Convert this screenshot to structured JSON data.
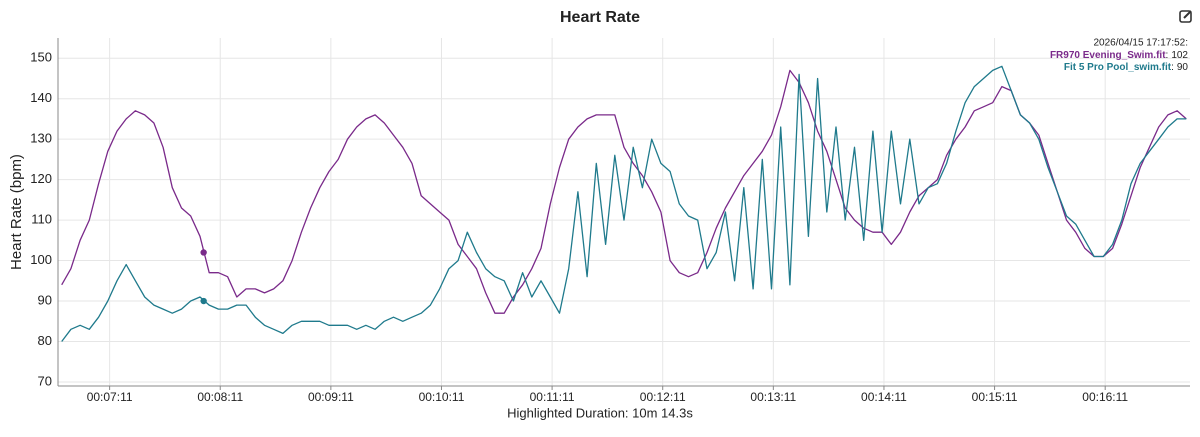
{
  "chart_data": {
    "type": "line",
    "title": "Heart Rate",
    "y_label": "Heart Rate (bpm)",
    "x_label": "Highlighted Duration: 10m 14.3s",
    "readout": {
      "time": "2026/04/15 17:17:52:",
      "separator": ":"
    },
    "xlim": [
      403,
      1017
    ],
    "ylim": [
      69,
      155
    ],
    "grid": true,
    "xticks": [
      {
        "value": 431,
        "label": "00:07:11"
      },
      {
        "value": 491,
        "label": "00:08:11"
      },
      {
        "value": 551,
        "label": "00:09:11"
      },
      {
        "value": 611,
        "label": "00:10:11"
      },
      {
        "value": 671,
        "label": "00:11:11"
      },
      {
        "value": 731,
        "label": "00:12:11"
      },
      {
        "value": 791,
        "label": "00:13:11"
      },
      {
        "value": 851,
        "label": "00:14:11"
      },
      {
        "value": 911,
        "label": "00:15:11"
      },
      {
        "value": 971,
        "label": "00:16:11"
      }
    ],
    "yticks": [
      70,
      80,
      90,
      100,
      110,
      120,
      130,
      140,
      150
    ],
    "x": [
      405,
      410,
      415,
      420,
      425,
      430,
      435,
      440,
      445,
      450,
      455,
      460,
      465,
      470,
      475,
      480,
      485,
      490,
      495,
      500,
      505,
      510,
      515,
      520,
      525,
      530,
      535,
      540,
      545,
      550,
      555,
      560,
      565,
      570,
      575,
      580,
      585,
      590,
      595,
      600,
      605,
      610,
      615,
      620,
      625,
      630,
      635,
      640,
      645,
      650,
      655,
      660,
      665,
      670,
      675,
      680,
      685,
      690,
      695,
      700,
      705,
      710,
      715,
      720,
      725,
      730,
      735,
      740,
      745,
      750,
      755,
      760,
      765,
      770,
      775,
      780,
      785,
      790,
      795,
      800,
      805,
      810,
      815,
      820,
      825,
      830,
      835,
      840,
      845,
      850,
      855,
      860,
      865,
      870,
      875,
      880,
      885,
      890,
      895,
      900,
      905,
      910,
      915,
      920,
      925,
      930,
      935,
      940,
      945,
      950,
      955,
      960,
      965,
      970,
      975,
      980,
      985,
      990,
      995,
      1000,
      1005,
      1010,
      1015
    ],
    "series": [
      {
        "name": "FR970 Evening_Swim.fit",
        "color": "#7a2a8a",
        "highlight_x": 482,
        "highlight_value": 102,
        "values": [
          94,
          98,
          105,
          110,
          119,
          127,
          132,
          135,
          137,
          136,
          134,
          128,
          118,
          113,
          111,
          106,
          97,
          97,
          96,
          91,
          93,
          93,
          92,
          93,
          95,
          100,
          107,
          113,
          118,
          122,
          125,
          130,
          133,
          135,
          136,
          134,
          131,
          128,
          124,
          116,
          114,
          112,
          110,
          104,
          101,
          98,
          92,
          87,
          87,
          91,
          94,
          98,
          103,
          114,
          123,
          130,
          133,
          135,
          136,
          136,
          136,
          128,
          124,
          121,
          117,
          112,
          100,
          97,
          96,
          97,
          102,
          108,
          113,
          117,
          121,
          124,
          127,
          131,
          138,
          147,
          144,
          139,
          132,
          127,
          120,
          113,
          110,
          108,
          107,
          107,
          104,
          107,
          112,
          116,
          118,
          120,
          126,
          130,
          133,
          137,
          138,
          139,
          143,
          142,
          136,
          134,
          131,
          124,
          117,
          110,
          107,
          103,
          101,
          101,
          103,
          109,
          116,
          123,
          128,
          133,
          136,
          137,
          135
        ]
      },
      {
        "name": "Fit 5 Pro Pool_swim.fit",
        "color": "#1f7a8c",
        "highlight_x": 482,
        "highlight_value": 90,
        "values": [
          80,
          83,
          84,
          83,
          86,
          90,
          95,
          99,
          95,
          91,
          89,
          88,
          87,
          88,
          90,
          91,
          89,
          88,
          88,
          89,
          89,
          86,
          84,
          83,
          82,
          84,
          85,
          85,
          85,
          84,
          84,
          84,
          83,
          84,
          83,
          85,
          86,
          85,
          86,
          87,
          89,
          93,
          98,
          100,
          107,
          102,
          98,
          96,
          95,
          90,
          97,
          91,
          95,
          91,
          87,
          98,
          117,
          96,
          124,
          104,
          126,
          110,
          128,
          118,
          130,
          124,
          122,
          114,
          111,
          110,
          98,
          102,
          112,
          95,
          118,
          93,
          125,
          93,
          133,
          94,
          146,
          106,
          145,
          112,
          133,
          110,
          128,
          105,
          132,
          107,
          132,
          114,
          130,
          114,
          118,
          119,
          124,
          132,
          139,
          143,
          145,
          147,
          148,
          142,
          136,
          134,
          130,
          123,
          117,
          111,
          109,
          105,
          101,
          101,
          104,
          110,
          119,
          124,
          127,
          130,
          133,
          135,
          135
        ]
      }
    ]
  }
}
